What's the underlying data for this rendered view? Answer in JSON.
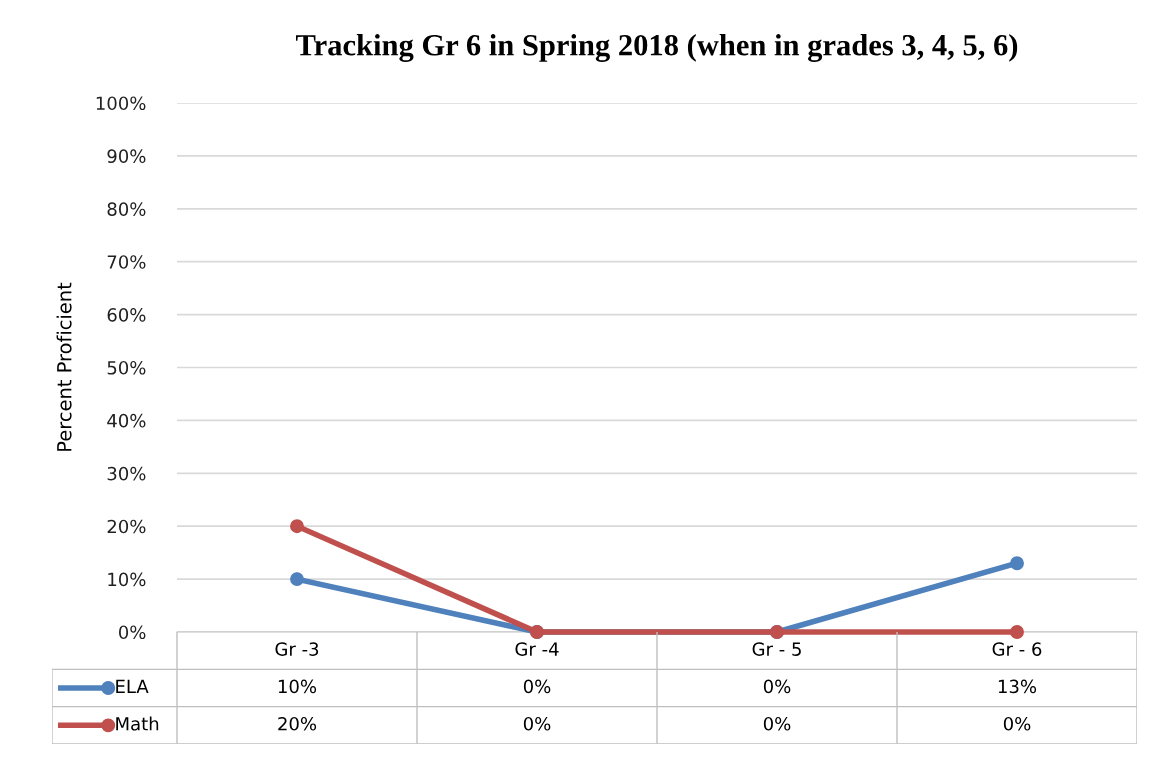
{
  "chart_data": {
    "type": "line",
    "title": "Tracking Gr 6 in Spring 2018 (when in grades 3, 4, 5, 6)",
    "ylabel": "Percent Proficient",
    "categories": [
      "Gr -3",
      "Gr -4",
      "Gr - 5",
      "Gr - 6"
    ],
    "series": [
      {
        "name": "ELA",
        "color": "#4f81bd",
        "values": [
          10,
          0,
          0,
          13
        ],
        "value_labels": [
          "10%",
          "0%",
          "0%",
          "13%"
        ]
      },
      {
        "name": "Math",
        "color": "#c0504d",
        "values": [
          20,
          0,
          0,
          0
        ],
        "value_labels": [
          "20%",
          "0%",
          "0%",
          "0%"
        ]
      }
    ],
    "ylim": [
      0,
      100
    ],
    "yticks": [
      {
        "value": 0,
        "label": "0%"
      },
      {
        "value": 10,
        "label": "10%"
      },
      {
        "value": 20,
        "label": "20%"
      },
      {
        "value": 30,
        "label": "30%"
      },
      {
        "value": 40,
        "label": "40%"
      },
      {
        "value": 50,
        "label": "50%"
      },
      {
        "value": 60,
        "label": "60%"
      },
      {
        "value": 70,
        "label": "70%"
      },
      {
        "value": 80,
        "label": "80%"
      },
      {
        "value": 90,
        "label": "90%"
      },
      {
        "value": 100,
        "label": "100%"
      }
    ],
    "grid": "y",
    "legend": "bottom",
    "marker": "circle",
    "line_style": "solid"
  }
}
